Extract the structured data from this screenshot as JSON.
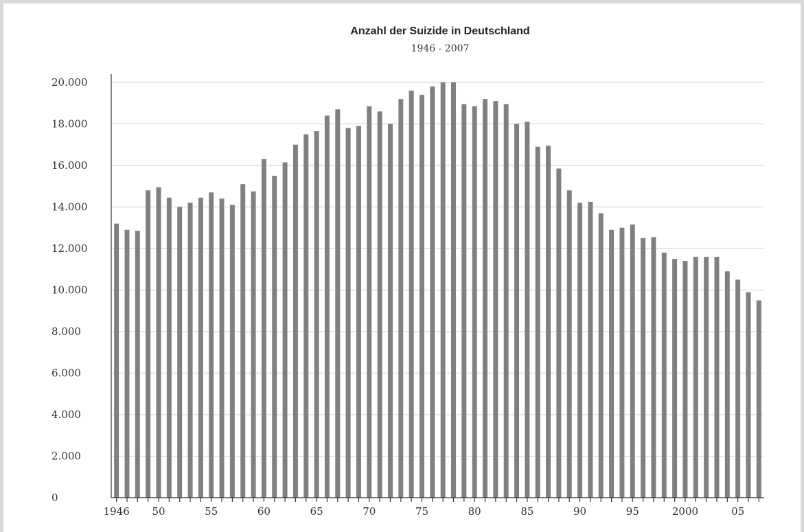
{
  "chart_data": {
    "type": "bar",
    "title": "Anzahl der Suizide in Deutschland",
    "subtitle": "1946 - 2007",
    "xlabel": "",
    "ylabel": "",
    "ylim": [
      0,
      20000
    ],
    "grid": true,
    "y_ticks": [
      "0",
      "2.000",
      "4.000",
      "6.000",
      "8.000",
      "10.000",
      "12.000",
      "14.000",
      "16.000",
      "18.000",
      "20.000"
    ],
    "x_tick_labels": [
      {
        "year": 1946,
        "label": "1946"
      },
      {
        "year": 1950,
        "label": "50"
      },
      {
        "year": 1955,
        "label": "55"
      },
      {
        "year": 1960,
        "label": "60"
      },
      {
        "year": 1965,
        "label": "65"
      },
      {
        "year": 1970,
        "label": "70"
      },
      {
        "year": 1975,
        "label": "75"
      },
      {
        "year": 1980,
        "label": "80"
      },
      {
        "year": 1985,
        "label": "85"
      },
      {
        "year": 1990,
        "label": "90"
      },
      {
        "year": 1995,
        "label": "95"
      },
      {
        "year": 2000,
        "label": "2000"
      },
      {
        "year": 2005,
        "label": "05"
      }
    ],
    "categories": [
      1946,
      1947,
      1948,
      1949,
      1950,
      1951,
      1952,
      1953,
      1954,
      1955,
      1956,
      1957,
      1958,
      1959,
      1960,
      1961,
      1962,
      1963,
      1964,
      1965,
      1966,
      1967,
      1968,
      1969,
      1970,
      1971,
      1972,
      1973,
      1974,
      1975,
      1976,
      1977,
      1978,
      1979,
      1980,
      1981,
      1982,
      1983,
      1984,
      1985,
      1986,
      1987,
      1988,
      1989,
      1990,
      1991,
      1992,
      1993,
      1994,
      1995,
      1996,
      1997,
      1998,
      1999,
      2000,
      2001,
      2002,
      2003,
      2004,
      2005,
      2006,
      2007
    ],
    "values": [
      13200,
      12900,
      12850,
      14800,
      14950,
      14450,
      14000,
      14200,
      14450,
      14700,
      14400,
      14100,
      15100,
      14750,
      16300,
      15500,
      16150,
      17000,
      17500,
      17650,
      18400,
      18700,
      17800,
      17900,
      18850,
      18600,
      18000,
      19200,
      19600,
      19400,
      19800,
      20000,
      20000,
      18950,
      18850,
      19200,
      19100,
      18950,
      18000,
      18100,
      16900,
      16950,
      15850,
      14800,
      14200,
      14250,
      13700,
      12900,
      13000,
      13150,
      12500,
      12550,
      11800,
      11500,
      11400,
      11600,
      11600,
      11600,
      10900,
      10500,
      9900,
      9500
    ]
  }
}
